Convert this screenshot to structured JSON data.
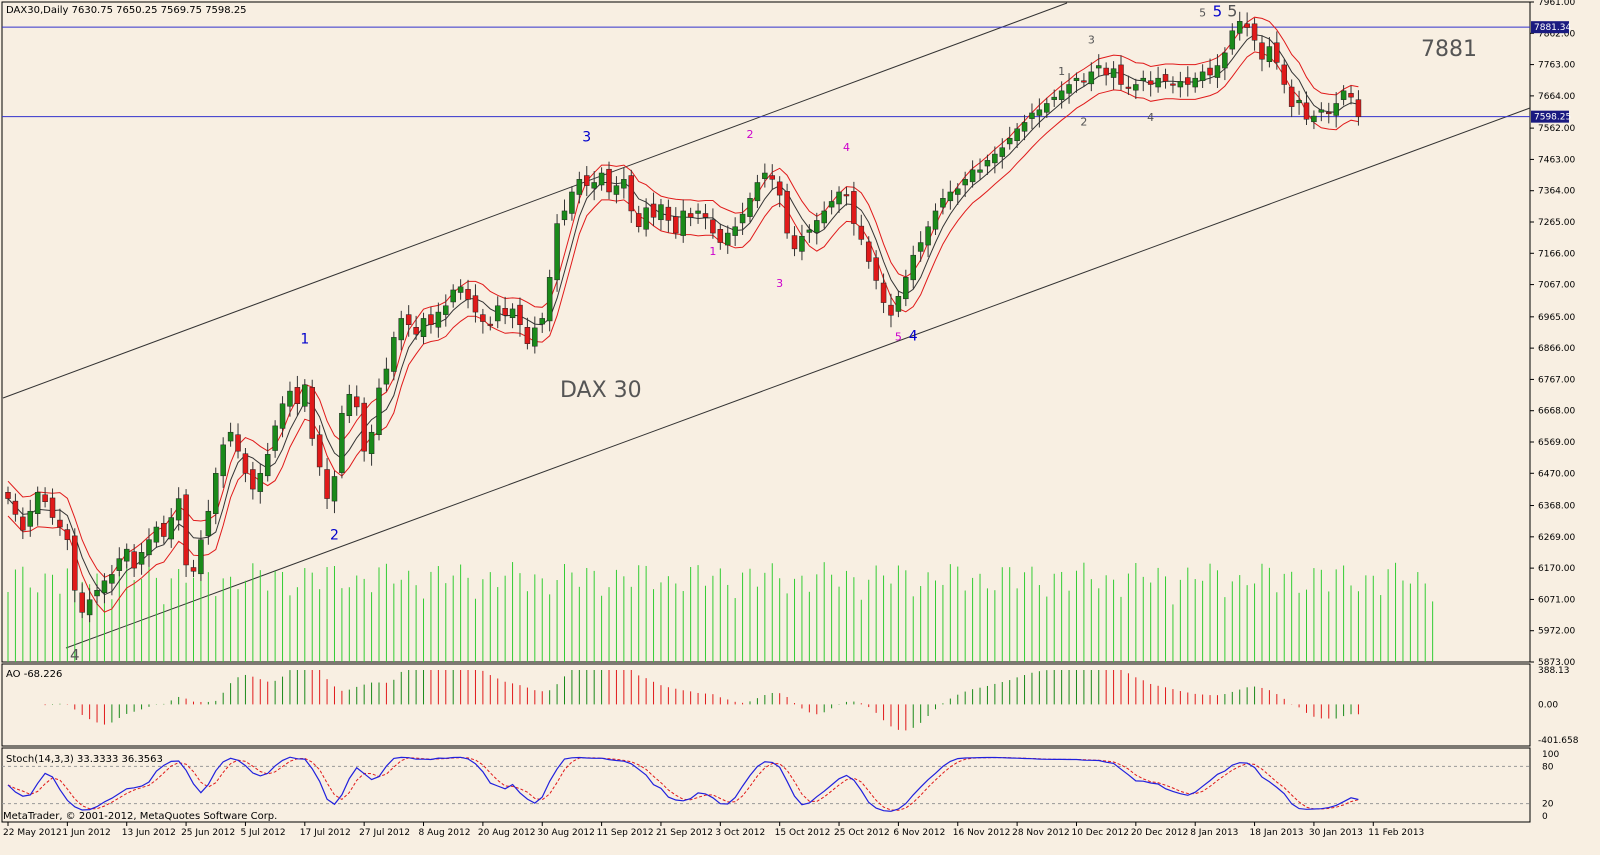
{
  "chart_data": {
    "type": "candlestick",
    "symbol_header": "DAX30,Daily  7630.75 7650.25 7569.75 7598.25",
    "title": "DAX 30",
    "annotation_price": "7881",
    "price_ticks": [
      "7961.00",
      "7862.00",
      "7763.00",
      "7664.00",
      "7562.00",
      "7463.00",
      "7364.00",
      "7265.00",
      "7166.00",
      "7067.00",
      "6965.00",
      "6866.00",
      "6767.00",
      "6668.00",
      "6569.00",
      "6470.00",
      "6368.00",
      "6269.00",
      "6170.00",
      "6071.00",
      "5972.00",
      "5873.00"
    ],
    "price_tick_values": [
      7961,
      7862,
      7763,
      7664,
      7562,
      7463,
      7364,
      7265,
      7166,
      7067,
      6965,
      6866,
      6767,
      6668,
      6569,
      6470,
      6368,
      6269,
      6170,
      6071,
      5972,
      5873
    ],
    "price_range": [
      5873,
      7961
    ],
    "level_labels": [
      "7881.34",
      "7598.25"
    ],
    "level_values": [
      7881.34,
      7598.25
    ],
    "date_labels": [
      "22 May 2012",
      "1 Jun 2012",
      "13 Jun 2012",
      "25 Jun 2012",
      "5 Jul 2012",
      "17 Jul 2012",
      "27 Jul 2012",
      "8 Aug 2012",
      "20 Aug 2012",
      "30 Aug 2012",
      "11 Sep 2012",
      "21 Sep 2012",
      "3 Oct 2012",
      "15 Oct 2012",
      "25 Oct 2012",
      "6 Nov 2012",
      "16 Nov 2012",
      "28 Nov 2012",
      "10 Dec 2012",
      "20 Dec 2012",
      "8 Jan 2013",
      "18 Jan 2013",
      "30 Jan 2013",
      "11 Feb 2013"
    ],
    "date_label_bars": [
      0,
      8,
      16,
      24,
      32,
      40,
      48,
      56,
      64,
      72,
      80,
      88,
      96,
      104,
      112,
      120,
      128,
      136,
      144,
      152,
      160,
      168,
      176,
      184
    ],
    "closes": [
      6390,
      6340,
      6290,
      6350,
      6410,
      6380,
      6330,
      6300,
      6260,
      6100,
      6030,
      6070,
      6100,
      6130,
      6150,
      6200,
      6230,
      6170,
      6220,
      6260,
      6300,
      6270,
      6330,
      6390,
      6180,
      6160,
      6260,
      6350,
      6470,
      6560,
      6600,
      6540,
      6470,
      6420,
      6470,
      6530,
      6620,
      6690,
      6730,
      6690,
      6750,
      6580,
      6490,
      6390,
      6460,
      6660,
      6720,
      6680,
      6540,
      6600,
      6740,
      6800,
      6900,
      6960,
      6940,
      6910,
      6960,
      6940,
      6980,
      7000,
      7050,
      7060,
      7020,
      6980,
      6950,
      6940,
      7000,
      6970,
      6990,
      6940,
      6880,
      6930,
      6960,
      7090,
      7260,
      7300,
      7360,
      7400,
      7380,
      7390,
      7420,
      7360,
      7380,
      7400,
      7300,
      7250,
      7310,
      7280,
      7320,
      7270,
      7230,
      7300,
      7280,
      7300,
      7280,
      7230,
      7200,
      7230,
      7250,
      7290,
      7340,
      7390,
      7420,
      7400,
      7350,
      7230,
      7180,
      7220,
      7240,
      7270,
      7300,
      7330,
      7360,
      7350,
      7260,
      7210,
      7140,
      7080,
      7010,
      6970,
      7030,
      7090,
      7160,
      7200,
      7250,
      7300,
      7340,
      7360,
      7370,
      7400,
      7430,
      7430,
      7460,
      7480,
      7500,
      7530,
      7560,
      7580,
      7610,
      7620,
      7640,
      7660,
      7680,
      7700,
      7720,
      7710,
      7740,
      7760,
      7730,
      7750,
      7700,
      7690,
      7700,
      7720,
      7700,
      7720,
      7710,
      7700,
      7710,
      7700,
      7720,
      7740,
      7730,
      7760,
      7800,
      7870,
      7900,
      7880,
      7840,
      7780,
      7820,
      7770,
      7700,
      7630,
      7650,
      7590,
      7600,
      7620,
      7610,
      7640,
      7680,
      7660,
      7598
    ],
    "volume_bars": 193,
    "ao_label": "AO -68.226",
    "ao_ticks": [
      "388.13",
      "0.00",
      "-401.658"
    ],
    "ao_tick_values": [
      388.13,
      0,
      -401.658
    ],
    "ao_range": [
      -401.658,
      388.13
    ],
    "stoch_label": "Stoch(14,3,3) 33.3333 36.3563",
    "stoch_ticks": [
      "100",
      "80",
      "20",
      "0"
    ],
    "stoch_tick_values": [
      100,
      80,
      20,
      0
    ],
    "wave_labels": [
      {
        "text": "4",
        "bar": 9,
        "price": 5880,
        "color": "#555555",
        "size": 15
      },
      {
        "text": "1",
        "bar": 40,
        "price": 6880,
        "color": "#0000cc",
        "size": 14
      },
      {
        "text": "2",
        "bar": 44,
        "price": 6260,
        "color": "#0000cc",
        "size": 14
      },
      {
        "text": "3",
        "bar": 78,
        "price": 7520,
        "color": "#0000cc",
        "size": 14
      },
      {
        "text": "1",
        "bar": 95,
        "price": 7160,
        "color": "#cc00cc",
        "size": 11
      },
      {
        "text": "2",
        "bar": 100,
        "price": 7530,
        "color": "#cc00cc",
        "size": 11
      },
      {
        "text": "3",
        "bar": 104,
        "price": 7060,
        "color": "#cc00cc",
        "size": 11
      },
      {
        "text": "4",
        "bar": 113,
        "price": 7490,
        "color": "#cc00cc",
        "size": 11
      },
      {
        "text": "5",
        "bar": 120,
        "price": 6890,
        "color": "#cc00cc",
        "size": 11
      },
      {
        "text": "4",
        "bar": 122,
        "price": 6890,
        "color": "#0000cc",
        "size": 14
      },
      {
        "text": "1",
        "bar": 142,
        "price": 7730,
        "color": "#555555",
        "size": 11
      },
      {
        "text": "2",
        "bar": 145,
        "price": 7570,
        "color": "#555555",
        "size": 11
      },
      {
        "text": "3",
        "bar": 146,
        "price": 7830,
        "color": "#555555",
        "size": 11
      },
      {
        "text": "4",
        "bar": 154,
        "price": 7585,
        "color": "#555555",
        "size": 11
      },
      {
        "text": "5",
        "bar": 161,
        "price": 7915,
        "color": "#555555",
        "size": 11
      },
      {
        "text": "5",
        "bar": 163,
        "price": 7915,
        "color": "#0000cc",
        "size": 15
      },
      {
        "text": "5",
        "bar": 165,
        "price": 7915,
        "color": "#555555",
        "size": 16
      }
    ]
  },
  "footer": {
    "copyright": "MetaTrader, © 2001-2012, MetaQuotes Software Corp."
  }
}
